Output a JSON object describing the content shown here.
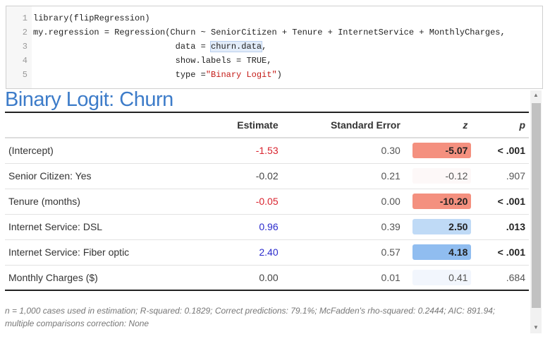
{
  "code": {
    "lines": [
      {
        "n": "1",
        "pre": "library(flipRegression)",
        "sel": "",
        "post": "",
        "str": "",
        "end": ""
      },
      {
        "n": "2",
        "pre": "my.regression = Regression(Churn ~ SeniorCitizen + Tenure + InternetService + MonthlyCharges,",
        "sel": "",
        "post": "",
        "str": "",
        "end": ""
      },
      {
        "n": "3",
        "pre": "                            data = ",
        "sel": "churn.data",
        "post": ",",
        "str": "",
        "end": ""
      },
      {
        "n": "4",
        "pre": "                            show.labels = TRUE,",
        "sel": "",
        "post": "",
        "str": "",
        "end": ""
      },
      {
        "n": "5",
        "pre": "                            type =",
        "sel": "",
        "post": "",
        "str": "\"Binary Logit\"",
        "end": ")"
      }
    ]
  },
  "title": "Binary Logit: Churn",
  "table": {
    "headers": [
      "",
      "Estimate",
      "Standard Error",
      "z",
      "p"
    ],
    "rows": [
      {
        "label": "(Intercept)",
        "estimate": "-1.53",
        "se": "0.30",
        "z": "-5.07",
        "p": "< .001",
        "est_color": "#d9232e",
        "z_bg": "#f4907f",
        "bold": true
      },
      {
        "label": "Senior Citizen: Yes",
        "estimate": "-0.02",
        "se": "0.21",
        "z": "-0.12",
        "p": ".907",
        "est_color": "#444444",
        "z_bg": "#fdf8f8",
        "bold": false
      },
      {
        "label": "Tenure (months)",
        "estimate": "-0.05",
        "se": "0.00",
        "z": "-10.20",
        "p": "< .001",
        "est_color": "#d9232e",
        "z_bg": "#f4907f",
        "bold": true
      },
      {
        "label": "Internet Service: DSL",
        "estimate": "0.96",
        "se": "0.39",
        "z": "2.50",
        "p": ".013",
        "est_color": "#2b2bcc",
        "z_bg": "#bfdaf6",
        "bold": true
      },
      {
        "label": "Internet Service: Fiber optic",
        "estimate": "2.40",
        "se": "0.57",
        "z": "4.18",
        "p": "< .001",
        "est_color": "#2b2bcc",
        "z_bg": "#90bdf0",
        "bold": true
      },
      {
        "label": "Monthly Charges ($)",
        "estimate": "0.00",
        "se": "0.01",
        "z": "0.41",
        "p": ".684",
        "est_color": "#444444",
        "z_bg": "#f2f6fd",
        "bold": false
      }
    ]
  },
  "footnote": "n = 1,000 cases used in estimation; R-squared: 0.1829; Correct predictions: 79.1%; McFadden's rho-squared: 0.2444; AIC: 891.94; multiple comparisons correction: None"
}
